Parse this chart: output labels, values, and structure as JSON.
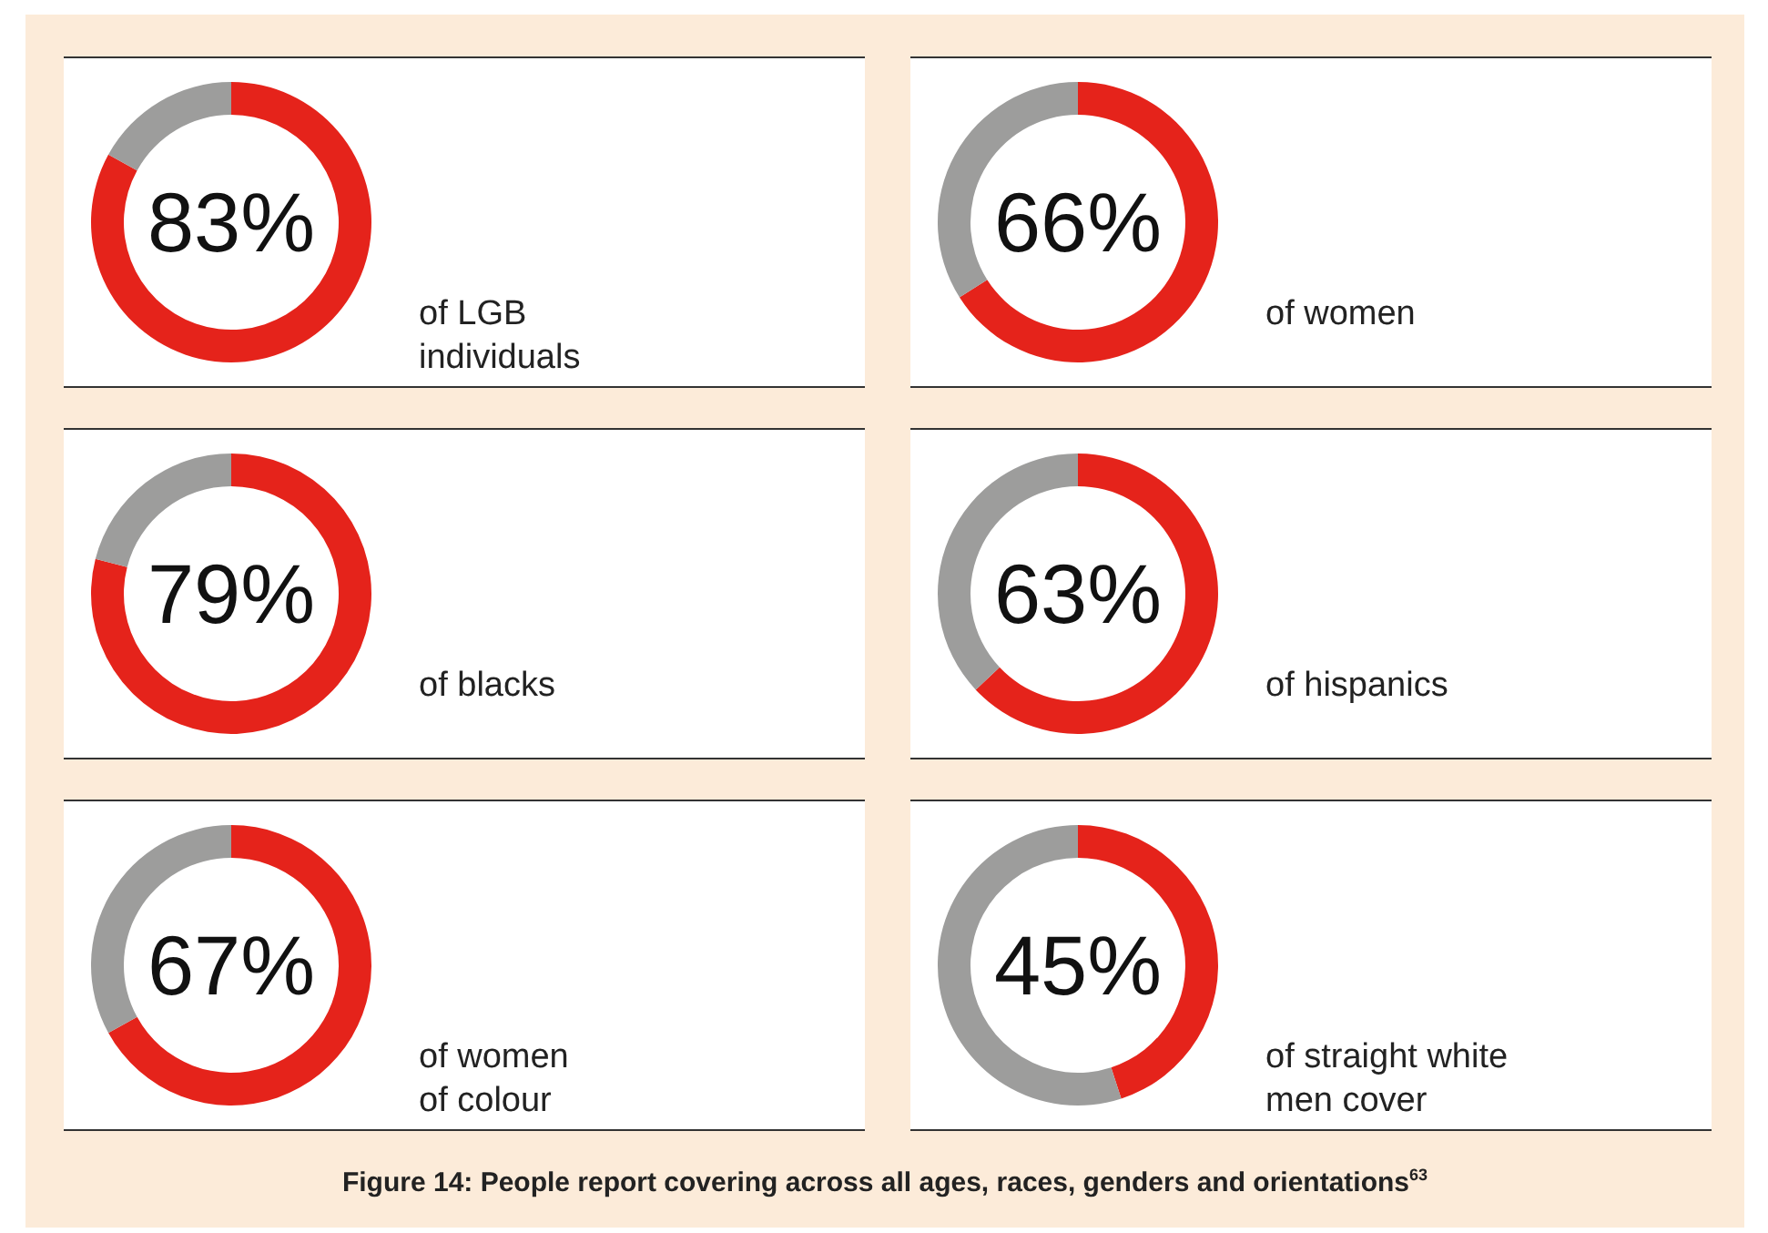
{
  "chart_data": [
    {
      "type": "donut",
      "title": "83%",
      "categories": [
        "of LGB\nindividuals",
        null
      ],
      "values": [
        83,
        17
      ],
      "colors": [
        "#e5231b",
        "#9d9d9c"
      ]
    },
    {
      "type": "donut",
      "title": "66%",
      "categories": [
        "of women",
        null
      ],
      "values": [
        66,
        34
      ],
      "colors": [
        "#e5231b",
        "#9d9d9c"
      ]
    },
    {
      "type": "donut",
      "title": "79%",
      "categories": [
        "of blacks",
        null
      ],
      "values": [
        79,
        21
      ],
      "colors": [
        "#e5231b",
        "#9d9d9c"
      ]
    },
    {
      "type": "donut",
      "title": "63%",
      "categories": [
        "of hispanics",
        null
      ],
      "values": [
        63,
        37
      ],
      "colors": [
        "#e5231b",
        "#9d9d9c"
      ]
    },
    {
      "type": "donut",
      "title": "67%",
      "categories": [
        "of women\nof colour",
        null
      ],
      "values": [
        67,
        33
      ],
      "colors": [
        "#e5231b",
        "#9d9d9c"
      ]
    },
    {
      "type": "donut",
      "title": "45%",
      "categories": [
        "of straight white\nmen cover",
        null
      ],
      "values": [
        45,
        55
      ],
      "colors": [
        "#e5231b",
        "#9d9d9c"
      ],
      "annotations": [
        "Figure 14: People report covering across all ages, races, genders and orientations$^{63}$"
      ]
    }
  ]
}
